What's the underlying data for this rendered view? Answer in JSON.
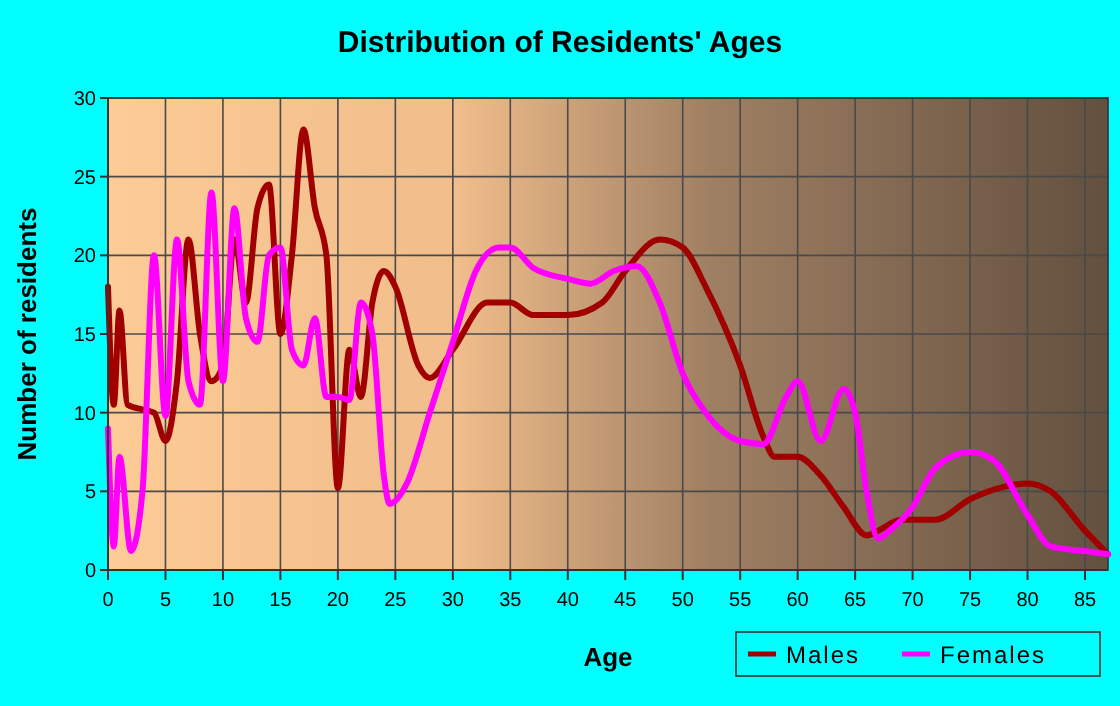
{
  "chart_data": {
    "type": "line",
    "title": "Distribution of Residents' Ages",
    "xlabel": "Age",
    "ylabel": "Number of residents",
    "xlim": [
      0,
      87
    ],
    "xticks": [
      0,
      5,
      10,
      15,
      20,
      25,
      30,
      35,
      40,
      45,
      50,
      55,
      60,
      65,
      70,
      75,
      80,
      85
    ],
    "ylim": [
      0,
      30
    ],
    "yticks": [
      0,
      5,
      10,
      15,
      20,
      25,
      30
    ],
    "grid": true,
    "legend": "bottom right",
    "marker": "none",
    "line_style": "solid",
    "series": [
      {
        "name": "Males",
        "color": "#a00000",
        "x": [
          0,
          0.5,
          1,
          1.7,
          3,
          4,
          5,
          6,
          7,
          8,
          9,
          10,
          11,
          12,
          13,
          14,
          15,
          16,
          17,
          18,
          19,
          20,
          21,
          22,
          23,
          24,
          25,
          27,
          28,
          30,
          33,
          35,
          37,
          40,
          43,
          45,
          48,
          50,
          52,
          55,
          57,
          58,
          60,
          62,
          64,
          66,
          67,
          69,
          72,
          75,
          78,
          80,
          82,
          85,
          87
        ],
        "values": [
          18,
          10.5,
          16.5,
          10.5,
          10.2,
          10,
          8.2,
          12,
          21,
          15,
          12,
          13,
          21,
          17,
          23,
          24.5,
          15,
          20,
          28,
          23,
          20,
          5.2,
          14,
          11,
          17,
          19,
          18,
          13,
          12.2,
          14,
          17,
          17,
          16.2,
          16.2,
          17,
          19,
          21,
          20.5,
          18,
          13,
          8.5,
          7.2,
          7.2,
          6,
          4,
          2.2,
          2.5,
          3.2,
          3.2,
          4.5,
          5.3,
          5.5,
          5,
          2.5,
          1
        ]
      },
      {
        "name": "Females",
        "color": "#ff00ff",
        "x": [
          0,
          0.5,
          1,
          2,
          3,
          4,
          5,
          6,
          7,
          8,
          9,
          10,
          11,
          12,
          13,
          14,
          15,
          16,
          17,
          18,
          19,
          20,
          21,
          22,
          23,
          24,
          24.5,
          26,
          28,
          30,
          32,
          34,
          35,
          37,
          40,
          42,
          44,
          46,
          48,
          50,
          52,
          55,
          57,
          59,
          60,
          62,
          64,
          65,
          66,
          67,
          68,
          70,
          72,
          75,
          77,
          80,
          82,
          85,
          87
        ],
        "values": [
          9,
          1.5,
          7.2,
          1.2,
          5,
          20,
          9.8,
          21,
          12,
          10.5,
          24,
          12,
          23,
          16,
          14.5,
          20,
          20.5,
          14,
          13,
          16,
          11,
          11,
          10.8,
          17,
          15,
          6,
          4.2,
          5.5,
          10,
          14.5,
          19,
          20.5,
          20.5,
          19.2,
          18.5,
          18.2,
          19,
          19.3,
          17,
          12.5,
          10,
          8.2,
          8,
          11,
          12,
          8.2,
          11.5,
          10,
          5,
          2,
          2.5,
          4,
          6.5,
          7.5,
          7,
          3.5,
          1.5,
          1.2,
          1
        ]
      }
    ]
  }
}
